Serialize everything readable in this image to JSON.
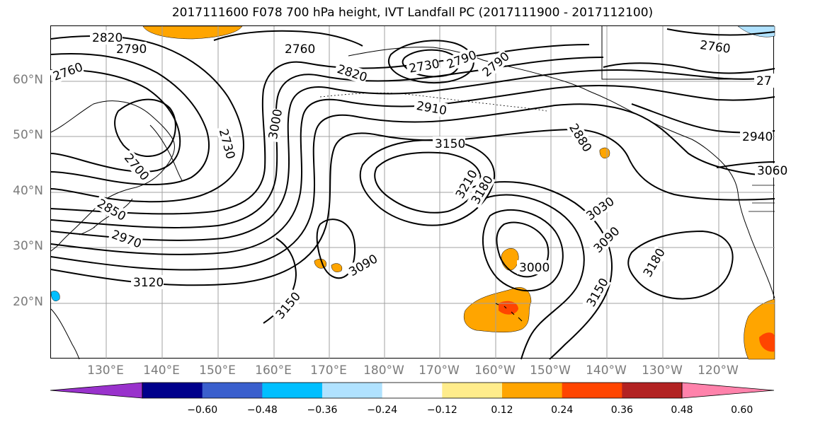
{
  "title": "2017111600 F078 700 hPa height, IVT Landfall PC (2017111900 - 2017112100)",
  "colors": {
    "contour": "#000000",
    "grid": "#a0a0a0",
    "coast": "#000000",
    "axis_label": "#7a7a7a"
  },
  "lat_labels": [
    "60°N",
    "50°N",
    "40°N",
    "30°N",
    "20°N"
  ],
  "lon_labels": [
    "130°E",
    "140°E",
    "150°E",
    "160°E",
    "170°E",
    "180°W",
    "170°W",
    "160°W",
    "150°W",
    "140°W",
    "130°W",
    "120°W"
  ],
  "contour_labels": [
    {
      "text": "2820"
    },
    {
      "text": "2790"
    },
    {
      "text": "2760"
    },
    {
      "text": "2760"
    },
    {
      "text": "2760"
    },
    {
      "text": "2820"
    },
    {
      "text": "2730"
    },
    {
      "text": "2790"
    },
    {
      "text": "2790"
    },
    {
      "text": "2910"
    },
    {
      "text": "3150"
    },
    {
      "text": "2880"
    },
    {
      "text": "2940"
    },
    {
      "text": "3060"
    },
    {
      "text": "2700"
    },
    {
      "text": "2850"
    },
    {
      "text": "2970"
    },
    {
      "text": "3120"
    },
    {
      "text": "3150"
    },
    {
      "text": "3090"
    },
    {
      "text": "3000"
    },
    {
      "text": "3210"
    },
    {
      "text": "3180"
    },
    {
      "text": "3030"
    },
    {
      "text": "3090"
    },
    {
      "text": "3150"
    },
    {
      "text": "3180"
    },
    {
      "text": "2730"
    },
    {
      "text": "3000"
    },
    {
      "text": "27"
    }
  ],
  "colorbar": {
    "colors": [
      "#9932cc",
      "#00008b",
      "#3a5fcd",
      "#00bfff",
      "#b0e2ff",
      "#ffffff",
      "#ffec8b",
      "#ffa500",
      "#ff4500",
      "#b22222",
      "#ff82ab"
    ],
    "ticks": [
      "−0.60",
      "−0.48",
      "−0.36",
      "−0.24",
      "−0.12",
      "0.12",
      "0.24",
      "0.36",
      "0.48",
      "0.60"
    ]
  }
}
